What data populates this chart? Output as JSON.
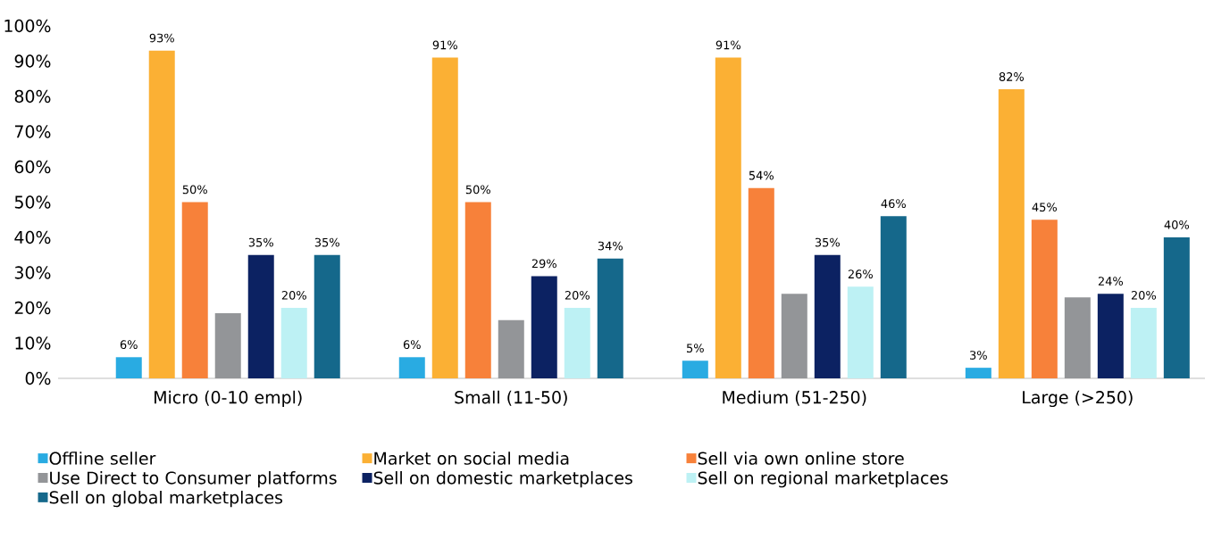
{
  "chart_data": {
    "type": "bar",
    "categories": [
      "Micro (0-10 empl)",
      "Small (11-50)",
      "Medium (51-250)",
      "Large (>250)"
    ],
    "series": [
      {
        "name": "Offline seller",
        "color": "#29abe2",
        "values": [
          6,
          6,
          5,
          3
        ],
        "value_labels": [
          "6%",
          "6%",
          "5%",
          "3%"
        ]
      },
      {
        "name": "Market on social media",
        "color": "#fbb034",
        "values": [
          93,
          91,
          91,
          82
        ],
        "value_labels": [
          "93%",
          "91%",
          "91%",
          "82%"
        ]
      },
      {
        "name": "Sell via own online store",
        "color": "#f7813a",
        "values": [
          50,
          50,
          54,
          45
        ],
        "value_labels": [
          "50%",
          "50%",
          "54%",
          "45%"
        ]
      },
      {
        "name": "Use Direct to Consumer platforms",
        "color": "#939598",
        "values": [
          18.5,
          16.5,
          24,
          23
        ],
        "value_labels": [
          null,
          null,
          null,
          null
        ]
      },
      {
        "name": "Sell on domestic marketplaces",
        "color": "#0c2262",
        "values": [
          35,
          29,
          35,
          24
        ],
        "value_labels": [
          "35%",
          "29%",
          "35%",
          "24%"
        ]
      },
      {
        "name": "Sell on regional marketplaces",
        "color": "#bdf1f4",
        "values": [
          20,
          20,
          26,
          20
        ],
        "value_labels": [
          "20%",
          "20%",
          "26%",
          "20%"
        ]
      },
      {
        "name": "Sell on global marketplaces",
        "color": "#15688b",
        "values": [
          35,
          34,
          46,
          40
        ],
        "value_labels": [
          "35%",
          "34%",
          "46%",
          "40%"
        ]
      }
    ],
    "ylim": [
      0,
      100
    ],
    "yticks": [
      {
        "value": 0,
        "label": "0%"
      },
      {
        "value": 10,
        "label": "10%"
      },
      {
        "value": 20,
        "label": "20%"
      },
      {
        "value": 30,
        "label": "30%"
      },
      {
        "value": 40,
        "label": "40%"
      },
      {
        "value": 50,
        "label": "50%"
      },
      {
        "value": 60,
        "label": "60%"
      },
      {
        "value": 70,
        "label": "70%"
      },
      {
        "value": 80,
        "label": "80%"
      },
      {
        "value": 90,
        "label": "90%"
      },
      {
        "value": 100,
        "label": "100%"
      }
    ],
    "legend": "bottom"
  }
}
